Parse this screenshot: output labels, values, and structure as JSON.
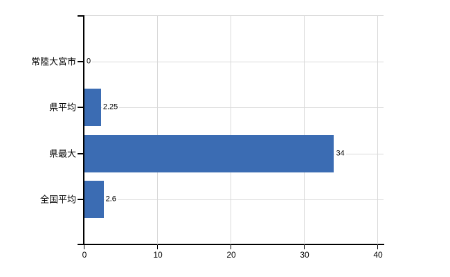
{
  "chart_data": {
    "type": "bar",
    "orientation": "horizontal",
    "title": "",
    "categories": [
      "常陸大宮市",
      "県平均",
      "県最大",
      "全国平均"
    ],
    "values": [
      0,
      2.25,
      34,
      2.6
    ],
    "value_labels": [
      "0",
      "2.25",
      "34",
      "2.6"
    ],
    "x_ticks": [
      0,
      10,
      20,
      30,
      40
    ],
    "x_tick_labels": [
      "0",
      "10",
      "20",
      "30",
      "40"
    ],
    "xlim": [
      0,
      40.75
    ],
    "grid": true,
    "legend": "none",
    "bar_color": "#3b6cb3",
    "gridline_color": "#d9d9d9",
    "axis_color": "#000000",
    "label_color": "#000000",
    "background_color": "#ffffff"
  }
}
